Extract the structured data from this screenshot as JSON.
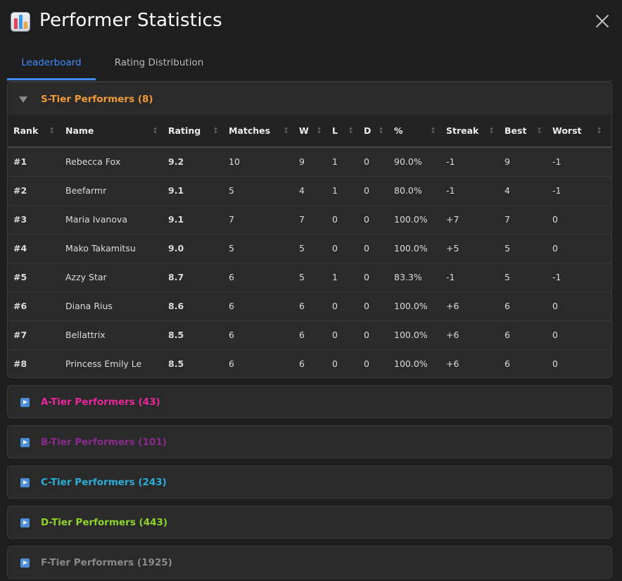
{
  "window": {
    "title": "Performer Statistics"
  },
  "tabs": [
    {
      "label": "Leaderboard",
      "active": true
    },
    {
      "label": "Rating Distribution",
      "active": false
    }
  ],
  "table": {
    "columns": [
      "Rank",
      "Name",
      "Rating",
      "Matches",
      "W",
      "L",
      "D",
      "%",
      "Streak",
      "Best",
      "Worst"
    ]
  },
  "tiers": [
    {
      "label": "S-Tier Performers (8)",
      "color": "#f29a38",
      "expanded": true,
      "rows": [
        {
          "rank": "#1",
          "name": "Rebecca Fox",
          "rating": "9.2",
          "matches": "10",
          "w": "9",
          "l": "1",
          "d": "0",
          "pct": "90.0%",
          "streak": "-1",
          "best": "9",
          "worst": "-1"
        },
        {
          "rank": "#2",
          "name": "Beefarmr",
          "rating": "9.1",
          "matches": "5",
          "w": "4",
          "l": "1",
          "d": "0",
          "pct": "80.0%",
          "streak": "-1",
          "best": "4",
          "worst": "-1"
        },
        {
          "rank": "#3",
          "name": "Maria Ivanova",
          "rating": "9.1",
          "matches": "7",
          "w": "7",
          "l": "0",
          "d": "0",
          "pct": "100.0%",
          "streak": "+7",
          "best": "7",
          "worst": "0"
        },
        {
          "rank": "#4",
          "name": "Mako Takamitsu",
          "rating": "9.0",
          "matches": "5",
          "w": "5",
          "l": "0",
          "d": "0",
          "pct": "100.0%",
          "streak": "+5",
          "best": "5",
          "worst": "0"
        },
        {
          "rank": "#5",
          "name": "Azzy Star",
          "rating": "8.7",
          "matches": "6",
          "w": "5",
          "l": "1",
          "d": "0",
          "pct": "83.3%",
          "streak": "-1",
          "best": "5",
          "worst": "-1"
        },
        {
          "rank": "#6",
          "name": "Diana Rius",
          "rating": "8.6",
          "matches": "6",
          "w": "6",
          "l": "0",
          "d": "0",
          "pct": "100.0%",
          "streak": "+6",
          "best": "6",
          "worst": "0"
        },
        {
          "rank": "#7",
          "name": "Bellattrix",
          "rating": "8.5",
          "matches": "6",
          "w": "6",
          "l": "0",
          "d": "0",
          "pct": "100.0%",
          "streak": "+6",
          "best": "6",
          "worst": "0"
        },
        {
          "rank": "#8",
          "name": "Princess Emily Le",
          "rating": "8.5",
          "matches": "6",
          "w": "6",
          "l": "0",
          "d": "0",
          "pct": "100.0%",
          "streak": "+6",
          "best": "6",
          "worst": "0"
        }
      ]
    },
    {
      "label": "A-Tier Performers (43)",
      "color": "#e8279b",
      "expanded": false
    },
    {
      "label": "B-Tier Performers (101)",
      "color": "#8b2a8e",
      "expanded": false
    },
    {
      "label": "C-Tier Performers (243)",
      "color": "#2aaed8",
      "expanded": false
    },
    {
      "label": "D-Tier Performers (443)",
      "color": "#8fd42a",
      "expanded": false
    },
    {
      "label": "F-Tier Performers (1925)",
      "color": "#8a8a8a",
      "expanded": false
    }
  ],
  "colors": {
    "accent": "#3f8cff",
    "name_link": "#4a8ef0",
    "rating": "#f39c3a",
    "streak_positive": "#3cb94a",
    "streak_negative": "#e2384b"
  }
}
